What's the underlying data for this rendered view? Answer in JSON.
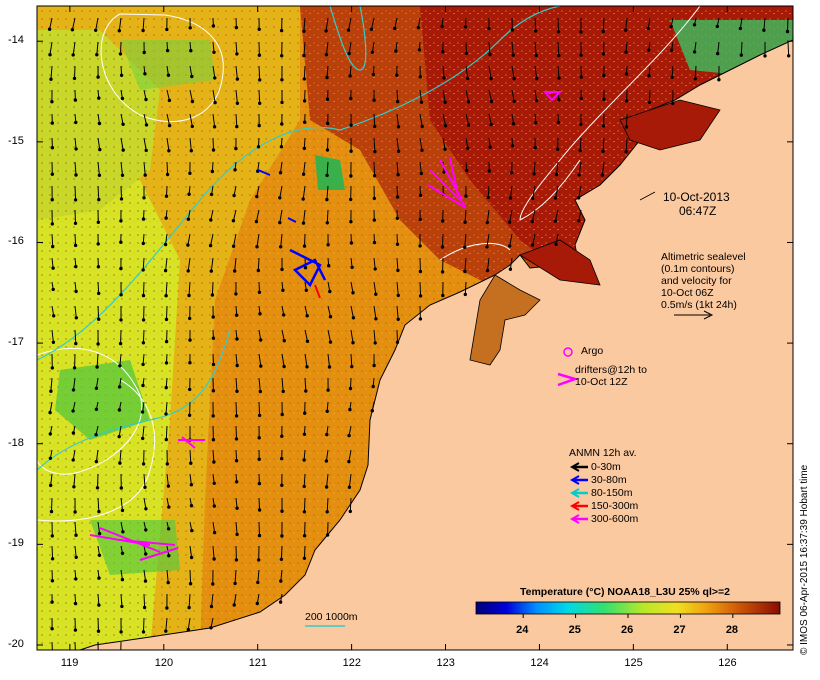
{
  "map": {
    "date_label": "10-Oct-2013",
    "time_label": "06:47Z",
    "altimetry_lines": [
      "Altimetric sealevel",
      "(0.1m contours)",
      "and velocity for",
      "10-Oct 06Z",
      "0.5m/s (1kt 24h)"
    ],
    "argo_label": "Argo",
    "drifters_lines": [
      "drifters@12h to",
      "10-Oct 12Z"
    ],
    "anmn_title": "ANMN 12h av.",
    "anmn_legend": [
      {
        "label": "0-30m",
        "color": "#000000"
      },
      {
        "label": "30-80m",
        "color": "#0000ff"
      },
      {
        "label": "80-150m",
        "color": "#00cccc"
      },
      {
        "label": "150-300m",
        "color": "#ff0000"
      },
      {
        "label": "300-600m",
        "color": "#ff00ff"
      }
    ],
    "isobath_label": "200  1000m",
    "colorbar_title": "Temperature (°C) NOAA18_L3U 25% ql>=2",
    "colorbar_ticks": [
      "24",
      "25",
      "26",
      "27",
      "28"
    ],
    "colorbar_range": [
      23.1,
      28.9
    ],
    "credit": "© IMOS 06-Apr-2015 16:37:39 Hobart time",
    "lon_range": [
      118.65,
      126.7
    ],
    "lat_range": [
      -20.05,
      -13.65
    ],
    "lon_ticks": [
      "119",
      "120",
      "121",
      "122",
      "123",
      "124",
      "125",
      "126"
    ],
    "lat_ticks": [
      "-14",
      "-15",
      "-16",
      "-17",
      "-18",
      "-19",
      "-20"
    ],
    "colors": {
      "land": "#fbc9a0",
      "sst_hot": "#a81a08",
      "sst_warm": "#e39010",
      "sst_cool": "#d6e425",
      "argo": "#ff00ff",
      "contour": "#ffffff",
      "isobath": "#33cccc"
    }
  }
}
